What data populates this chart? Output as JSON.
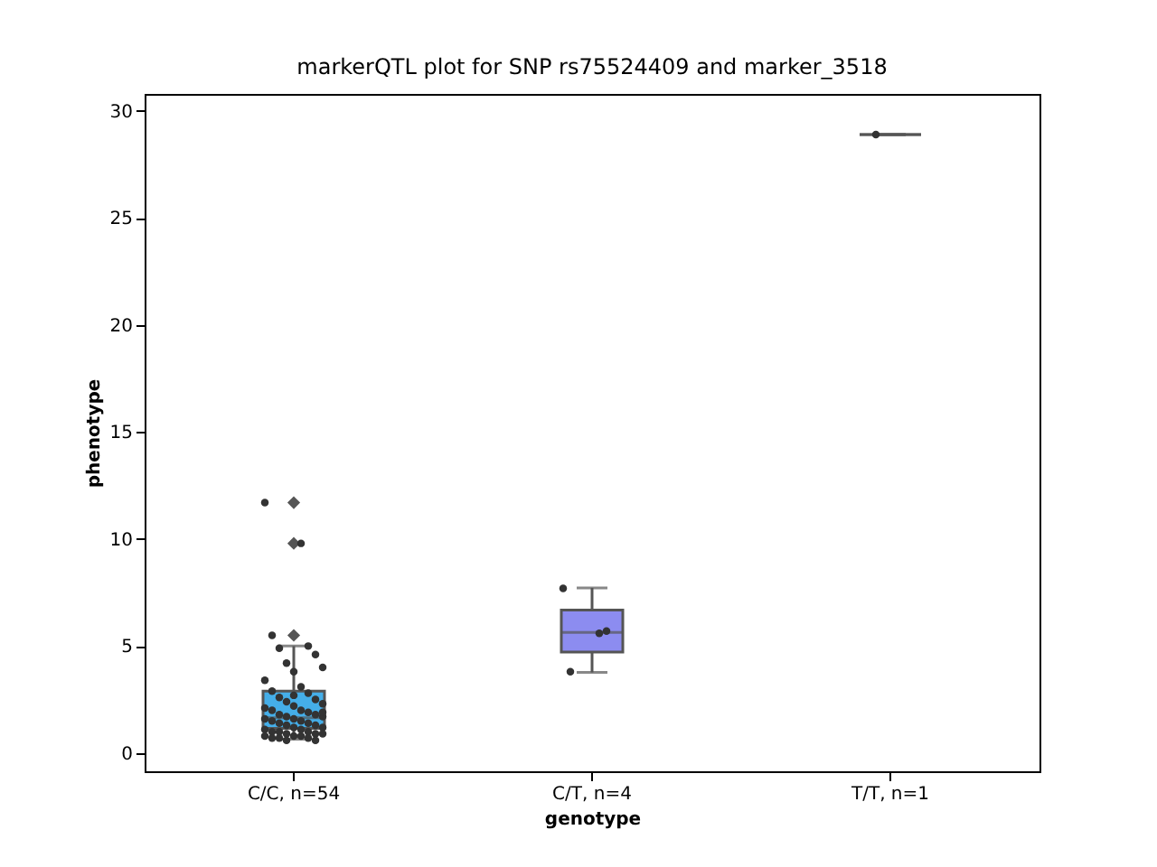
{
  "chart_data": {
    "type": "box",
    "title": "markerQTL plot for SNP rs75524409 and marker_3518",
    "xlabel": "genotype",
    "ylabel": "phenotype",
    "categories": [
      "C/C, n=54",
      "C/T, n=4",
      "T/T, n=1"
    ],
    "boxes": [
      {
        "low": 0.65,
        "q1": 1.15,
        "median": 1.65,
        "q3": 2.9,
        "high": 5.0,
        "outliers": [
          11.7,
          9.8,
          5.5
        ]
      },
      {
        "low": 3.77,
        "q1": 4.72,
        "median": 5.64,
        "q3": 6.68,
        "high": 7.72
      },
      {
        "low": 28.9,
        "q1": 28.9,
        "median": 28.9,
        "q3": 28.9,
        "high": 28.9
      }
    ],
    "colors": [
      "#45aee8",
      "#8c8cf0",
      null
    ],
    "ylim": [
      -0.85,
      30.8
    ],
    "yticks": [
      0,
      5,
      10,
      15,
      20,
      25,
      30
    ],
    "grid": false,
    "series": [
      {
        "type": "scatter",
        "color": "#333333",
        "marker": "circle",
        "x": [
          "C/C, n=54",
          "C/C, n=54",
          "C/C, n=54",
          "C/C, n=54",
          "C/C, n=54",
          "C/C, n=54",
          "C/C, n=54",
          "C/C, n=54",
          "C/C, n=54",
          "C/C, n=54",
          "C/C, n=54",
          "C/C, n=54",
          "C/C, n=54",
          "C/C, n=54",
          "C/C, n=54",
          "C/C, n=54",
          "C/C, n=54",
          "C/C, n=54",
          "C/C, n=54",
          "C/C, n=54",
          "C/C, n=54",
          "C/C, n=54",
          "C/C, n=54",
          "C/C, n=54",
          "C/C, n=54",
          "C/C, n=54",
          "C/C, n=54",
          "C/C, n=54",
          "C/C, n=54",
          "C/C, n=54",
          "C/C, n=54",
          "C/C, n=54",
          "C/C, n=54",
          "C/C, n=54",
          "C/C, n=54",
          "C/C, n=54",
          "C/C, n=54",
          "C/C, n=54",
          "C/C, n=54",
          "C/C, n=54",
          "C/C, n=54",
          "C/C, n=54",
          "C/C, n=54",
          "C/C, n=54",
          "C/C, n=54",
          "C/C, n=54",
          "C/C, n=54",
          "C/C, n=54",
          "C/C, n=54",
          "C/C, n=54",
          "C/C, n=54",
          "C/C, n=54",
          "C/C, n=54",
          "C/C, n=54",
          "C/T, n=4",
          "C/T, n=4",
          "C/T, n=4",
          "C/T, n=4",
          "T/T, n=1"
        ],
        "values": [
          11.7,
          9.8,
          5.5,
          5.0,
          4.9,
          4.6,
          4.2,
          4.0,
          3.8,
          3.4,
          3.1,
          2.9,
          2.8,
          2.6,
          2.5,
          2.4,
          2.3,
          2.2,
          2.1,
          2.0,
          2.0,
          1.9,
          1.8,
          1.8,
          1.7,
          1.7,
          1.6,
          1.6,
          1.5,
          1.5,
          1.4,
          1.4,
          1.3,
          1.3,
          1.2,
          1.2,
          1.1,
          1.1,
          1.0,
          1.0,
          1.0,
          0.9,
          0.9,
          0.9,
          0.8,
          0.8,
          0.8,
          0.7,
          0.7,
          0.7,
          0.6,
          0.6,
          1.9,
          2.7,
          7.7,
          5.6,
          3.8,
          5.7,
          28.9
        ]
      }
    ]
  }
}
